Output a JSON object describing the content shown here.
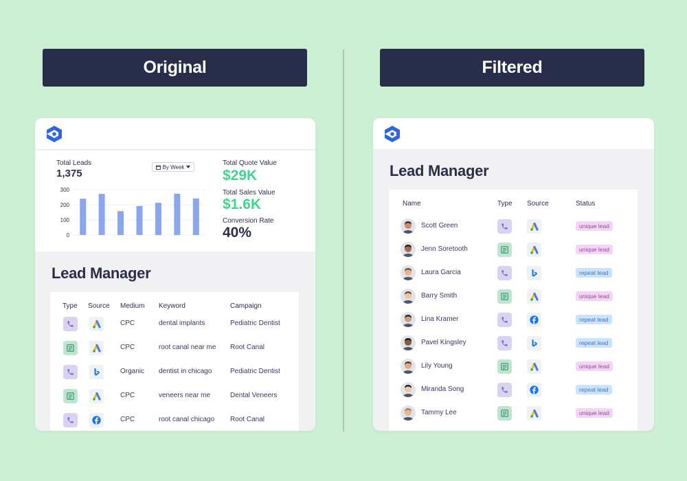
{
  "banners": {
    "left": "Original",
    "right": "Filtered"
  },
  "original": {
    "stats": {
      "total_leads_label": "Total Leads",
      "total_leads_value": "1,375",
      "period_select": "By Week",
      "total_quote_label": "Total Quote Value",
      "total_quote_value": "$29K",
      "total_sales_label": "Total Sales Value",
      "total_sales_value": "$1.6K",
      "conversion_label": "Conversion Rate",
      "conversion_value": "40%"
    },
    "title": "Lead Manager",
    "columns": [
      "Type",
      "Source",
      "Medium",
      "Keyword",
      "Campaign"
    ],
    "rows": [
      {
        "type": "phone",
        "source": "google-ads",
        "medium": "CPC",
        "keyword": "dental implants",
        "campaign": "Pediatric Dentist"
      },
      {
        "type": "form",
        "source": "google-ads",
        "medium": "CPC",
        "keyword": "root canal near me",
        "campaign": "Root Canal"
      },
      {
        "type": "phone",
        "source": "bing",
        "medium": "Organic",
        "keyword": "dentist in chicago",
        "campaign": "Pediatric Dentist"
      },
      {
        "type": "form",
        "source": "google-ads",
        "medium": "CPC",
        "keyword": "veneers near me",
        "campaign": "Dental Veneers"
      },
      {
        "type": "phone",
        "source": "facebook",
        "medium": "CPC",
        "keyword": "root canal chicago",
        "campaign": "Root Canal"
      }
    ]
  },
  "filtered": {
    "title": "Lead Manager",
    "columns": [
      "Name",
      "Type",
      "Source",
      "Status"
    ],
    "rows": [
      {
        "name": "Scott Green",
        "type": "phone",
        "source": "google-ads",
        "status": "unique lead"
      },
      {
        "name": "Jenn Soretooth",
        "type": "form",
        "source": "google-ads",
        "status": "unique lead"
      },
      {
        "name": "Laura Garcia",
        "type": "phone",
        "source": "bing",
        "status": "repeat lead"
      },
      {
        "name": "Barry Smith",
        "type": "form",
        "source": "google-ads",
        "status": "unique lead"
      },
      {
        "name": "Lina Kramer",
        "type": "phone",
        "source": "facebook",
        "status": "repeat lead"
      },
      {
        "name": "Pavel Kingsley",
        "type": "phone",
        "source": "bing",
        "status": "repeat lead"
      },
      {
        "name": "Lily Young",
        "type": "form",
        "source": "google-ads",
        "status": "unique lead"
      },
      {
        "name": "Miranda Song",
        "type": "phone",
        "source": "facebook",
        "status": "repeat lead"
      },
      {
        "name": "Tammy Lee",
        "type": "form",
        "source": "google-ads",
        "status": "unique lead"
      }
    ]
  },
  "chart_data": {
    "type": "bar",
    "categories": [
      "",
      "",
      "",
      "",
      "",
      "",
      ""
    ],
    "values": [
      240,
      272,
      158,
      192,
      213,
      273,
      242
    ],
    "yticks": [
      "300",
      "200",
      "100",
      "0"
    ],
    "ylim": [
      0,
      300
    ],
    "grid": true,
    "color": "#8aa6ef"
  },
  "colors": {
    "background": "#cdf0d4",
    "banner": "#282d4a",
    "accent_green": "#3ed58d",
    "phone_icon_bg": "#d9d2f1",
    "form_icon_bg": "#bfe4d1",
    "unique_badge": "#f3d6f3",
    "repeat_badge": "#cde2fb"
  }
}
